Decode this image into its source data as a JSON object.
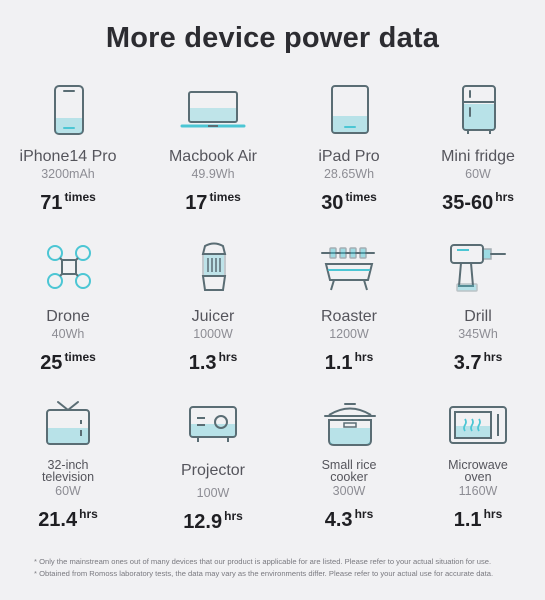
{
  "title": "More device power data",
  "colors": {
    "accent": "#4cc6d4",
    "line": "#5a6d74"
  },
  "devices": [
    {
      "name": "iPhone14 Pro",
      "spec": "3200mAh",
      "value": "71",
      "unit": "times",
      "icon": "phone-icon"
    },
    {
      "name": "Macbook Air",
      "spec": "49.9Wh",
      "value": "17",
      "unit": "times",
      "icon": "laptop-icon"
    },
    {
      "name": "iPad Pro",
      "spec": "28.65Wh",
      "value": "30",
      "unit": "times",
      "icon": "tablet-icon"
    },
    {
      "name": "Mini fridge",
      "spec": "60W",
      "value": "35-60",
      "unit": "hrs",
      "icon": "fridge-icon"
    },
    {
      "name": "Drone",
      "spec": "40Wh",
      "value": "25",
      "unit": "times",
      "icon": "drone-icon"
    },
    {
      "name": "Juicer",
      "spec": "1000W",
      "value": "1.3",
      "unit": "hrs",
      "icon": "juicer-icon"
    },
    {
      "name": "Roaster",
      "spec": "1200W",
      "value": "1.1",
      "unit": "hrs",
      "icon": "roaster-icon"
    },
    {
      "name": "Drill",
      "spec": "345Wh",
      "value": "3.7",
      "unit": "hrs",
      "icon": "drill-icon"
    },
    {
      "name_line1": "32-inch",
      "name_line2": "television",
      "spec": "60W",
      "value": "21.4",
      "unit": "hrs",
      "icon": "television-icon"
    },
    {
      "name": "Projector",
      "spec": "100W",
      "value": "12.9",
      "unit": "hrs",
      "icon": "projector-icon"
    },
    {
      "name_line1": "Small rice",
      "name_line2": "cooker",
      "spec": "300W",
      "value": "4.3",
      "unit": "hrs",
      "icon": "rice-cooker-icon"
    },
    {
      "name_line1": "Microwave",
      "name_line2": "oven",
      "spec": "1160W",
      "value": "1.1",
      "unit": "hrs",
      "icon": "microwave-icon"
    }
  ],
  "footnotes": [
    "* Only the mainstream ones out of many devices that our product is applicable for are listed. Please refer to your actual situation for use.",
    "* Obtained from Romoss laboratory tests, the data may vary as the environments differ. Please refer to your actual use for accurate data."
  ]
}
